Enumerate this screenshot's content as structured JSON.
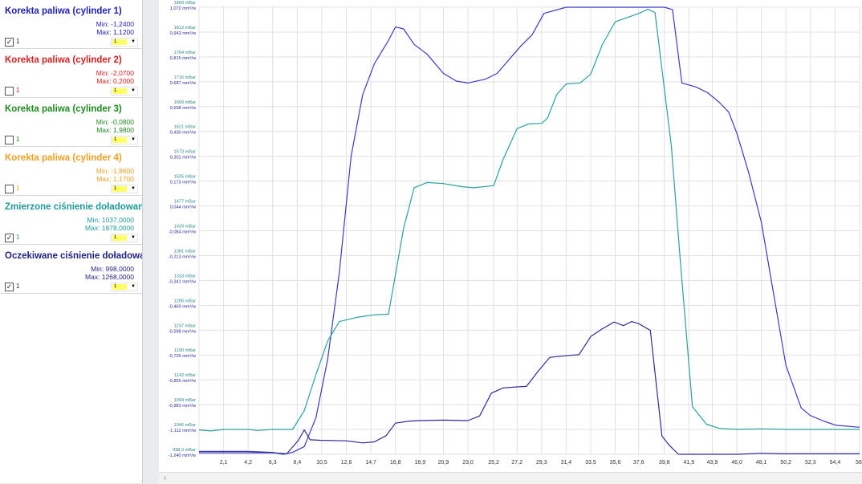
{
  "channels": [
    {
      "name": "Korekta paliwa (cylinder 1)",
      "min": "Min: -1,2400",
      "max": "Max: 1,1200",
      "checked": true,
      "check_mark": "✓",
      "index": "1",
      "select": "1",
      "color": "#1f1fb4"
    },
    {
      "name": "Korekta paliwa (cylinder 2)",
      "min": "Min: -2,0700",
      "max": "Max: 0,2000",
      "checked": false,
      "check_mark": "",
      "index": "1",
      "select": "1",
      "color": "#d42020"
    },
    {
      "name": "Korekta paliwa (cylinder 3)",
      "min": "Min: -0,0800",
      "max": "Max: 1,9800",
      "checked": false,
      "check_mark": "",
      "index": "1",
      "select": "1",
      "color": "#1f8a1f"
    },
    {
      "name": "Korekta paliwa (cylinder 4)",
      "min": "Min: -1,8600",
      "max": "Max: 1,1700",
      "checked": false,
      "check_mark": "",
      "index": "1",
      "select": "1",
      "color": "#f0a020"
    },
    {
      "name": "Zmierzone ciśnienie doładowani",
      "min": "Min: 1037,0000",
      "max": "Max: 1878,0000",
      "checked": true,
      "check_mark": "✓",
      "index": "1",
      "select": "1",
      "color": "#1f9999"
    },
    {
      "name": "Oczekiwane ciśnienie doładowai",
      "min": "Min: 998,0000",
      "max": "Max: 1268,0000",
      "checked": true,
      "check_mark": "✓",
      "index": "1",
      "select": "1",
      "color": "#1f1f80"
    }
  ],
  "scrollbar": {
    "arrow": "‹"
  },
  "chart_data": {
    "type": "line",
    "x": [
      0,
      2.1,
      4.2,
      6.3,
      8.4,
      10.5,
      12.6,
      14.7,
      16.8,
      18.9,
      20.9,
      23.0,
      25.2,
      27.2,
      29.3,
      31.4,
      33.5,
      35.6,
      37.6,
      39.8,
      41.9,
      43.9,
      46.0,
      48.1,
      50.2,
      52.3,
      54.4,
      56.5
    ],
    "xlim": [
      0,
      56.5
    ],
    "x_ticks": [
      "2,1",
      "4,2",
      "6,3",
      "8,4",
      "10,5",
      "12,6",
      "14,7",
      "16,8",
      "18,9",
      "20,9",
      "23,0",
      "25,2",
      "27,2",
      "29,3",
      "31,4",
      "33,5",
      "35,6",
      "37,6",
      "39,8",
      "41,9",
      "43,9",
      "46,0",
      "48,1",
      "50,2",
      "52,3",
      "54,4",
      "56,"
    ],
    "y_ticks": [
      {
        "p": "1860 mBar",
        "m": "1,072 mm³/w"
      },
      {
        "p": "1812 mBar",
        "m": "0,943 mm³/w"
      },
      {
        "p": "1764 mBar",
        "m": "0,815 mm³/w"
      },
      {
        "p": "1716 mBar",
        "m": "0,687 mm³/w"
      },
      {
        "p": "1669 mBar",
        "m": "0,558 mm³/w"
      },
      {
        "p": "1621 mBar",
        "m": "0,430 mm³/w"
      },
      {
        "p": "1573 mBar",
        "m": "0,301 mm³/w"
      },
      {
        "p": "1525 mBar",
        "m": "0,173 mm³/w"
      },
      {
        "p": "1477 mBar",
        "m": "0,044 mm³/w"
      },
      {
        "p": "1429 mBar",
        "m": "-0,084 mm³/w"
      },
      {
        "p": "1381 mBar",
        "m": "-0,213 mm³/w"
      },
      {
        "p": "1333 mBar",
        "m": "-0,341 mm³/w"
      },
      {
        "p": "1285 mBar",
        "m": "-0,469 mm³/w"
      },
      {
        "p": "1237 mBar",
        "m": "-0,598 mm³/w"
      },
      {
        "p": "1190 mBar",
        "m": "-0,726 mm³/w"
      },
      {
        "p": "1142 mBar",
        "m": "-0,855 mm³/w"
      },
      {
        "p": "1094 mBar",
        "m": "-0,983 mm³/w"
      },
      {
        "p": "1046 mBar",
        "m": "-1,112 mm³/w"
      },
      {
        "p": "998,0 mBar",
        "m": "-1,240 mm³/w"
      }
    ],
    "ylim": [
      -1.24,
      1.072
    ],
    "grid": true,
    "series": [
      {
        "color": "#3a3ac8",
        "unit": "mm³/w",
        "points": [
          [
            0,
            -1.225
          ],
          [
            2.1,
            -1.225
          ],
          [
            4.2,
            -1.225
          ],
          [
            6.3,
            -1.23
          ],
          [
            7.2,
            -1.24
          ],
          [
            8.0,
            -1.23
          ],
          [
            9.0,
            -1.2
          ],
          [
            10.0,
            -1.05
          ],
          [
            11.0,
            -0.75
          ],
          [
            12.0,
            -0.3
          ],
          [
            13.0,
            0.3
          ],
          [
            14.0,
            0.62
          ],
          [
            15.0,
            0.78
          ],
          [
            16.2,
            0.9
          ],
          [
            16.8,
            0.97
          ],
          [
            17.5,
            0.96
          ],
          [
            18.4,
            0.88
          ],
          [
            19.5,
            0.83
          ],
          [
            20.9,
            0.73
          ],
          [
            22.0,
            0.69
          ],
          [
            23.0,
            0.68
          ],
          [
            24.5,
            0.7
          ],
          [
            25.5,
            0.73
          ],
          [
            26.5,
            0.8
          ],
          [
            27.5,
            0.87
          ],
          [
            28.5,
            0.93
          ],
          [
            29.5,
            1.04
          ],
          [
            31.4,
            1.072
          ],
          [
            33.5,
            1.072
          ],
          [
            35.6,
            1.072
          ],
          [
            37.6,
            1.072
          ],
          [
            39.8,
            1.072
          ],
          [
            40.5,
            1.06
          ],
          [
            41.3,
            0.68
          ],
          [
            42.5,
            0.66
          ],
          [
            43.5,
            0.63
          ],
          [
            44.5,
            0.58
          ],
          [
            45.3,
            0.53
          ],
          [
            46.0,
            0.42
          ],
          [
            47.0,
            0.22
          ],
          [
            48.1,
            -0.04
          ],
          [
            49.0,
            -0.36
          ],
          [
            50.2,
            -0.78
          ],
          [
            51.5,
            -1.0
          ],
          [
            52.3,
            -1.04
          ],
          [
            53.5,
            -1.07
          ],
          [
            54.5,
            -1.09
          ],
          [
            56.5,
            -1.1
          ]
        ]
      },
      {
        "color": "#2aa0a0",
        "unit": "mBar",
        "points": [
          [
            0,
            1045
          ],
          [
            1.0,
            1043
          ],
          [
            2.1,
            1046
          ],
          [
            4.2,
            1046
          ],
          [
            5.0,
            1044
          ],
          [
            6.3,
            1046
          ],
          [
            8.0,
            1046
          ],
          [
            9.0,
            1082
          ],
          [
            10.0,
            1152
          ],
          [
            11.0,
            1216
          ],
          [
            12.0,
            1254
          ],
          [
            13.5,
            1262
          ],
          [
            15.0,
            1267
          ],
          [
            16.2,
            1268
          ],
          [
            17.5,
            1434
          ],
          [
            18.4,
            1512
          ],
          [
            19.5,
            1522
          ],
          [
            20.9,
            1520
          ],
          [
            22.5,
            1514
          ],
          [
            23.5,
            1512
          ],
          [
            25.2,
            1516
          ],
          [
            26.0,
            1566
          ],
          [
            27.2,
            1626
          ],
          [
            28.2,
            1635
          ],
          [
            29.3,
            1636
          ],
          [
            29.8,
            1646
          ],
          [
            30.6,
            1692
          ],
          [
            31.4,
            1712
          ],
          [
            32.6,
            1714
          ],
          [
            33.5,
            1731
          ],
          [
            34.5,
            1788
          ],
          [
            35.6,
            1832
          ],
          [
            37.6,
            1848
          ],
          [
            38.4,
            1856
          ],
          [
            39.0,
            1850
          ],
          [
            40.4,
            1592
          ],
          [
            41.2,
            1362
          ],
          [
            42.2,
            1090
          ],
          [
            43.4,
            1056
          ],
          [
            44.5,
            1048
          ],
          [
            46.0,
            1046
          ],
          [
            48.1,
            1047
          ],
          [
            50.2,
            1046
          ],
          [
            52.3,
            1046
          ],
          [
            54.4,
            1046
          ],
          [
            56.5,
            1046
          ]
        ]
      },
      {
        "color": "#2b2b9c",
        "unit": "mBar",
        "points": [
          [
            0,
            1001
          ],
          [
            2.1,
            1001
          ],
          [
            4.2,
            1001
          ],
          [
            6.3,
            1001
          ],
          [
            7.5,
            999
          ],
          [
            8.5,
            1025
          ],
          [
            9.0,
            1045
          ],
          [
            9.5,
            1026
          ],
          [
            10.5,
            1025
          ],
          [
            12.6,
            1024
          ],
          [
            14.0,
            1020
          ],
          [
            15.0,
            1022
          ],
          [
            16.0,
            1034
          ],
          [
            16.8,
            1058
          ],
          [
            18.0,
            1062
          ],
          [
            18.9,
            1063
          ],
          [
            20.9,
            1064
          ],
          [
            23.0,
            1063
          ],
          [
            24.0,
            1072
          ],
          [
            25.0,
            1116
          ],
          [
            26.0,
            1126
          ],
          [
            27.2,
            1128
          ],
          [
            28.0,
            1129
          ],
          [
            29.0,
            1158
          ],
          [
            30.0,
            1185
          ],
          [
            31.4,
            1188
          ],
          [
            32.5,
            1190
          ],
          [
            33.5,
            1225
          ],
          [
            34.5,
            1240
          ],
          [
            35.5,
            1253
          ],
          [
            36.3,
            1246
          ],
          [
            37.0,
            1254
          ],
          [
            37.6,
            1250
          ],
          [
            38.6,
            1237
          ],
          [
            39.6,
            1033
          ],
          [
            40.2,
            1016
          ],
          [
            41.0,
            998
          ],
          [
            42.0,
            998
          ],
          [
            43.9,
            998
          ],
          [
            46.0,
            998
          ],
          [
            48.1,
            1000
          ],
          [
            50.2,
            999
          ],
          [
            52.3,
            999
          ],
          [
            54.4,
            999
          ],
          [
            56.5,
            999
          ]
        ]
      }
    ]
  }
}
